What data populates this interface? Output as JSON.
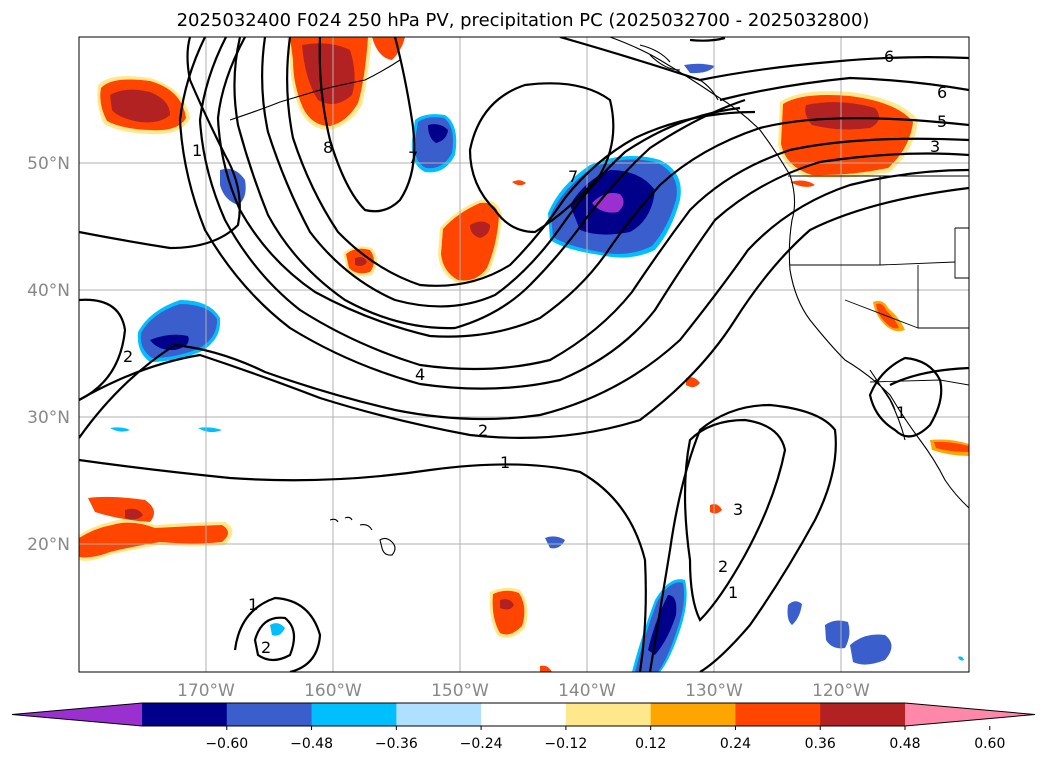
{
  "title": "2025032400 F024 250 hPa PV, precipitation PC (2025032700 - 2025032800)",
  "lon_labels": [
    "170°W",
    "160°W",
    "150°W",
    "140°W",
    "130°W",
    "120°W"
  ],
  "lat_labels": [
    "50°N",
    "40°N",
    "30°N",
    "20°N"
  ],
  "colorbar": {
    "colors": [
      "#9b30d0",
      "#00008b",
      "#3a5fcd",
      "#00bfff",
      "#b0e0ff",
      "#ffffff",
      "#ffe88c",
      "#ffa500",
      "#ff4500",
      "#b22222",
      "#ff88aa"
    ],
    "ticks": [
      "−0.60",
      "−0.48",
      "−0.36",
      "−0.24",
      "−0.12",
      "0.12",
      "0.24",
      "0.36",
      "0.48",
      "0.60"
    ]
  },
  "contour_labels": {
    "c1_nw": "1",
    "c8": "8",
    "c7_top": "7",
    "c6_top": "6",
    "c6_right": "6",
    "c5": "5",
    "c3_right": "3",
    "c7_lower": "7",
    "c2_west": "2",
    "c4": "4",
    "c2_mid": "2",
    "c1_mid": "1",
    "c3_south": "3",
    "c2_south": "2",
    "c1_south": "1",
    "c1_sw": "1",
    "c2_sw": "2",
    "c1_east": "1"
  }
}
